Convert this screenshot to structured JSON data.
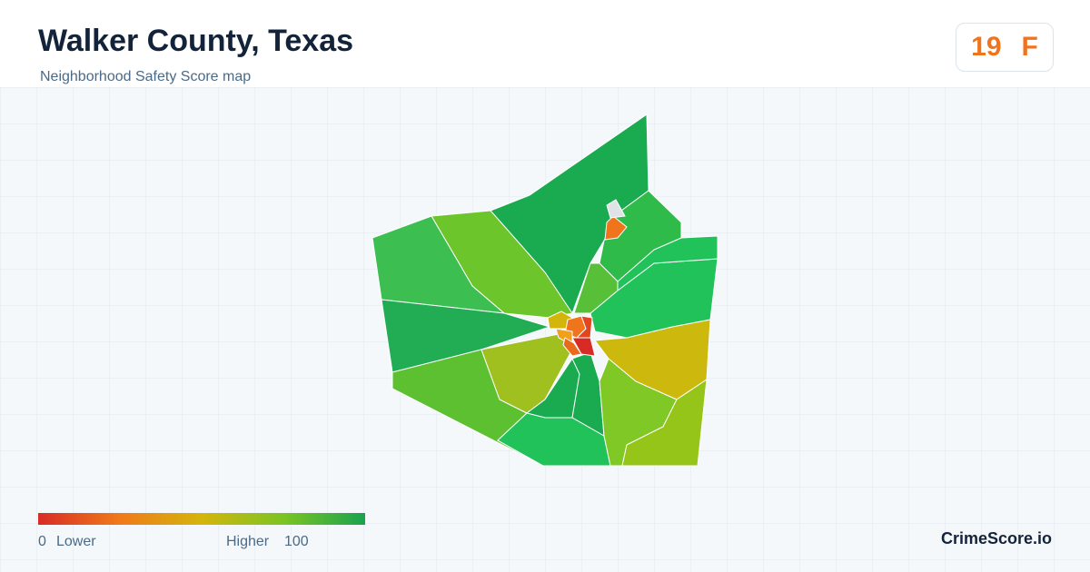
{
  "header": {
    "title": "Walker County, Texas",
    "subtitle": "Neighborhood Safety Score map"
  },
  "badge": {
    "score": "19",
    "grade": "F"
  },
  "legend": {
    "min": "0",
    "low_label": "Lower",
    "high_label": "Higher",
    "max": "100"
  },
  "footer": {
    "brand": "CrimeScore.io"
  }
}
